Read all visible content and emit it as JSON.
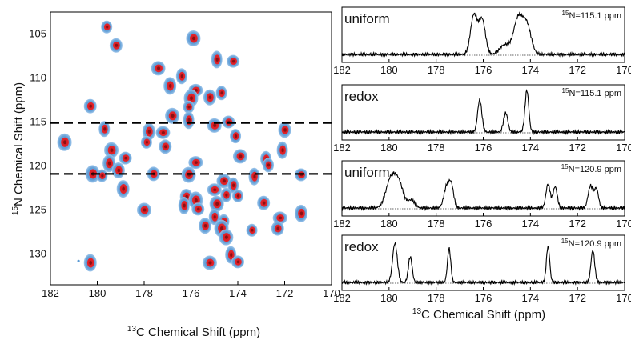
{
  "chart_data": [
    {
      "type": "scatter",
      "plot": "2D NCO correlation spectrum",
      "xlabel_iso": "13",
      "xlabel": "C Chemical Shift (ppm)",
      "ylabel_iso": "15",
      "ylabel": "N Chemical Shift (ppm)",
      "xlim": [
        182,
        170
      ],
      "ylim": [
        133.5,
        102.5
      ],
      "xticks": [
        "182",
        "180",
        "178",
        "176",
        "174",
        "172",
        "170"
      ],
      "yticks": [
        "105",
        "110",
        "115",
        "120",
        "125",
        "130"
      ],
      "dashed_lines_y": [
        115.1,
        120.9
      ],
      "contour_colors": {
        "outer": "#5b9bd5",
        "inner": "#e8262d"
      },
      "peaks": [
        {
          "x": 179.6,
          "y": 104.2
        },
        {
          "x": 179.2,
          "y": 106.3
        },
        {
          "x": 175.9,
          "y": 105.5
        },
        {
          "x": 174.9,
          "y": 107.9
        },
        {
          "x": 174.2,
          "y": 108.1
        },
        {
          "x": 177.4,
          "y": 108.9
        },
        {
          "x": 176.4,
          "y": 109.8
        },
        {
          "x": 176.9,
          "y": 110.9
        },
        {
          "x": 175.8,
          "y": 111.4
        },
        {
          "x": 174.7,
          "y": 111.7
        },
        {
          "x": 175.2,
          "y": 112.2
        },
        {
          "x": 176.0,
          "y": 112.3
        },
        {
          "x": 176.1,
          "y": 113.3
        },
        {
          "x": 180.3,
          "y": 113.2
        },
        {
          "x": 176.8,
          "y": 114.3
        },
        {
          "x": 176.1,
          "y": 114.8
        },
        {
          "x": 174.4,
          "y": 115.0
        },
        {
          "x": 175.0,
          "y": 115.4
        },
        {
          "x": 179.7,
          "y": 115.8
        },
        {
          "x": 177.8,
          "y": 116.1
        },
        {
          "x": 177.2,
          "y": 116.2
        },
        {
          "x": 174.1,
          "y": 116.6
        },
        {
          "x": 172.0,
          "y": 115.9
        },
        {
          "x": 181.4,
          "y": 117.3
        },
        {
          "x": 177.9,
          "y": 117.3
        },
        {
          "x": 177.1,
          "y": 117.8
        },
        {
          "x": 179.4,
          "y": 118.2
        },
        {
          "x": 172.1,
          "y": 118.2
        },
        {
          "x": 178.8,
          "y": 119.1
        },
        {
          "x": 173.9,
          "y": 118.9
        },
        {
          "x": 172.8,
          "y": 119.2
        },
        {
          "x": 179.5,
          "y": 119.7
        },
        {
          "x": 175.8,
          "y": 119.6
        },
        {
          "x": 172.7,
          "y": 119.9
        },
        {
          "x": 179.1,
          "y": 120.5
        },
        {
          "x": 180.2,
          "y": 120.9
        },
        {
          "x": 179.8,
          "y": 121.1
        },
        {
          "x": 177.6,
          "y": 120.9
        },
        {
          "x": 176.1,
          "y": 121.0
        },
        {
          "x": 173.3,
          "y": 121.2
        },
        {
          "x": 171.3,
          "y": 121.0
        },
        {
          "x": 174.6,
          "y": 121.7
        },
        {
          "x": 174.2,
          "y": 122.2
        },
        {
          "x": 178.9,
          "y": 122.6
        },
        {
          "x": 175.0,
          "y": 122.7
        },
        {
          "x": 174.5,
          "y": 123.3
        },
        {
          "x": 176.2,
          "y": 123.5
        },
        {
          "x": 175.8,
          "y": 123.9
        },
        {
          "x": 174.0,
          "y": 123.4
        },
        {
          "x": 172.9,
          "y": 124.2
        },
        {
          "x": 174.9,
          "y": 124.3
        },
        {
          "x": 176.3,
          "y": 124.5
        },
        {
          "x": 175.7,
          "y": 124.9
        },
        {
          "x": 178.0,
          "y": 125.0
        },
        {
          "x": 175.0,
          "y": 125.8
        },
        {
          "x": 171.3,
          "y": 125.4
        },
        {
          "x": 172.2,
          "y": 125.9
        },
        {
          "x": 174.6,
          "y": 126.3
        },
        {
          "x": 175.4,
          "y": 126.8
        },
        {
          "x": 174.7,
          "y": 127.1
        },
        {
          "x": 173.4,
          "y": 127.3
        },
        {
          "x": 172.3,
          "y": 127.1
        },
        {
          "x": 174.5,
          "y": 128.1
        },
        {
          "x": 174.3,
          "y": 130.1
        },
        {
          "x": 174.0,
          "y": 130.9
        },
        {
          "x": 175.2,
          "y": 131.0
        },
        {
          "x": 180.8,
          "y": 130.8
        },
        {
          "x": 180.3,
          "y": 131.0
        }
      ]
    },
    {
      "type": "line",
      "label": "uniform",
      "note_iso": "15",
      "note": "N=115.1 ppm",
      "xlim": [
        182,
        170
      ],
      "xticks": [
        "182",
        "180",
        "178",
        "176",
        "174",
        "172",
        "170"
      ],
      "peaks": [
        {
          "x": 176.4,
          "h": 0.92,
          "w": 0.14
        },
        {
          "x": 176.05,
          "h": 0.82,
          "w": 0.14
        },
        {
          "x": 175.1,
          "h": 0.22,
          "w": 0.2
        },
        {
          "x": 174.6,
          "h": 0.26,
          "w": 0.2
        },
        {
          "x": 174.5,
          "h": 0.6,
          "w": 0.18
        },
        {
          "x": 174.15,
          "h": 0.68,
          "w": 0.18
        }
      ]
    },
    {
      "type": "line",
      "label": "redox",
      "note_iso": "15",
      "note": "N=115.1 ppm",
      "xlim": [
        182,
        170
      ],
      "xticks": [
        "182",
        "180",
        "178",
        "176",
        "174",
        "172",
        "170"
      ],
      "peaks": [
        {
          "x": 176.15,
          "h": 0.75,
          "w": 0.09
        },
        {
          "x": 175.05,
          "h": 0.45,
          "w": 0.09
        },
        {
          "x": 174.15,
          "h": 0.98,
          "w": 0.08
        }
      ]
    },
    {
      "type": "line",
      "label": "uniform",
      "note_iso": "15",
      "note": "N=120.9 ppm",
      "xlim": [
        182,
        170
      ],
      "xticks": [
        "182",
        "180",
        "178",
        "176",
        "174",
        "172",
        "170"
      ],
      "peaks": [
        {
          "x": 179.9,
          "h": 0.72,
          "w": 0.22
        },
        {
          "x": 179.55,
          "h": 0.45,
          "w": 0.18
        },
        {
          "x": 179.05,
          "h": 0.18,
          "w": 0.15
        },
        {
          "x": 177.55,
          "h": 0.5,
          "w": 0.12
        },
        {
          "x": 177.35,
          "h": 0.48,
          "w": 0.1
        },
        {
          "x": 173.25,
          "h": 0.56,
          "w": 0.09
        },
        {
          "x": 172.95,
          "h": 0.5,
          "w": 0.09
        },
        {
          "x": 171.45,
          "h": 0.52,
          "w": 0.1
        },
        {
          "x": 171.2,
          "h": 0.45,
          "w": 0.09
        }
      ]
    },
    {
      "type": "line",
      "label": "redox",
      "note_iso": "15",
      "note": "N=120.9 ppm",
      "xlim": [
        182,
        170
      ],
      "xticks": [
        "182",
        "180",
        "178",
        "176",
        "174",
        "172",
        "170"
      ],
      "xlabel_iso": "13",
      "xlabel": "C Chemical Shift (ppm)",
      "peaks": [
        {
          "x": 179.75,
          "h": 0.92,
          "w": 0.1
        },
        {
          "x": 179.1,
          "h": 0.6,
          "w": 0.08
        },
        {
          "x": 177.45,
          "h": 0.8,
          "w": 0.07
        },
        {
          "x": 173.25,
          "h": 0.85,
          "w": 0.07
        },
        {
          "x": 171.35,
          "h": 0.75,
          "w": 0.08
        }
      ]
    }
  ]
}
